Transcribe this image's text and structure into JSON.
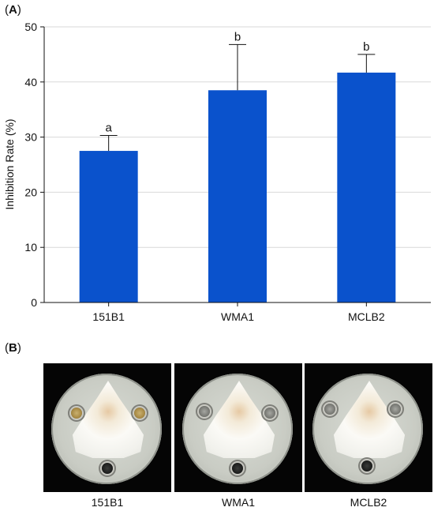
{
  "panels": {
    "a_label": "A",
    "b_label": "B"
  },
  "chart_data": {
    "type": "bar",
    "categories": [
      "151B1",
      "WMA1",
      "MCLB2"
    ],
    "values": [
      27.5,
      38.5,
      41.7
    ],
    "errors": [
      2.8,
      8.3,
      3.3
    ],
    "significance": [
      "a",
      "b",
      "b"
    ],
    "title": "",
    "xlabel": "",
    "ylabel": "Inhibition Rate (%)",
    "ylim": [
      0,
      50
    ],
    "yticks": [
      0,
      10,
      20,
      30,
      40,
      50
    ],
    "grid": true,
    "bar_color": "#0a52cc"
  },
  "photos": {
    "items": [
      {
        "label": "151B1",
        "wells": [
          "yellow",
          "yellow",
          "dark"
        ]
      },
      {
        "label": "WMA1",
        "wells": [
          "grey",
          "grey",
          "dark"
        ]
      },
      {
        "label": "MCLB2",
        "wells": [
          "grey",
          "grey",
          "dark"
        ]
      }
    ]
  }
}
